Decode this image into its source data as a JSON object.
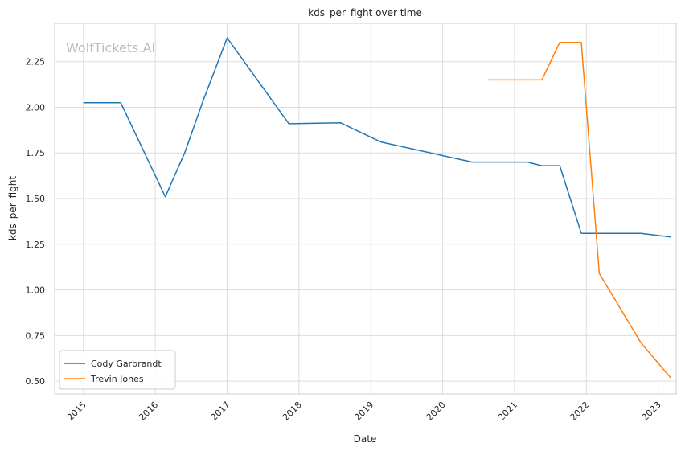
{
  "chart_data": {
    "type": "line",
    "title": "kds_per_fight over time",
    "xlabel": "Date",
    "ylabel": "kds_per_fight",
    "watermark": "WolfTickets.AI",
    "xlim": [
      2014.6,
      2023.25
    ],
    "ylim": [
      0.43,
      2.46
    ],
    "x_ticks": [
      2015,
      2016,
      2017,
      2018,
      2019,
      2020,
      2021,
      2022,
      2023
    ],
    "y_ticks": [
      0.5,
      0.75,
      1.0,
      1.25,
      1.5,
      1.75,
      2.0,
      2.25
    ],
    "y_tick_labels": [
      "0.50",
      "0.75",
      "1.00",
      "1.25",
      "1.50",
      "1.75",
      "2.00",
      "2.25"
    ],
    "grid": true,
    "legend_position": "bottom-left",
    "series": [
      {
        "name": "Cody Garbrandt",
        "color": "#1f77b4",
        "x": [
          2015.0,
          2015.52,
          2016.14,
          2016.41,
          2016.66,
          2017.0,
          2017.86,
          2018.58,
          2019.14,
          2020.41,
          2021.18,
          2021.38,
          2021.63,
          2021.93,
          2022.76,
          2023.17
        ],
        "y": [
          2.025,
          2.025,
          1.51,
          1.75,
          2.03,
          2.38,
          1.91,
          1.915,
          1.81,
          1.7,
          1.7,
          1.68,
          1.68,
          1.31,
          1.31,
          1.29
        ]
      },
      {
        "name": "Trevin Jones",
        "color": "#ff7f0e",
        "x": [
          2020.63,
          2021.38,
          2021.63,
          2021.93,
          2022.18,
          2022.76,
          2023.17
        ],
        "y": [
          2.15,
          2.15,
          2.355,
          2.355,
          1.09,
          0.71,
          0.52
        ]
      }
    ]
  }
}
